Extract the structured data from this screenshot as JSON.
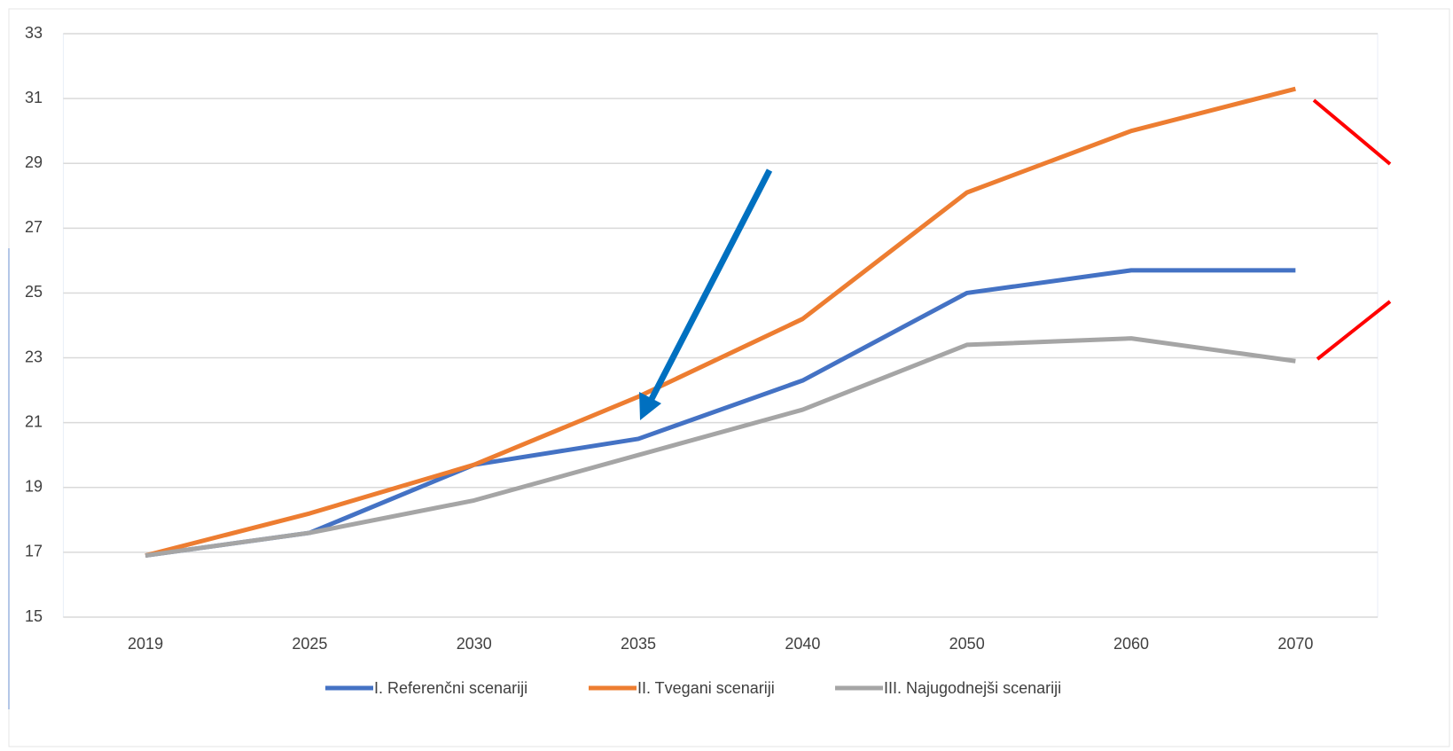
{
  "chart_data": {
    "type": "line",
    "categories": [
      "2019",
      "2025",
      "2030",
      "2035",
      "2040",
      "2050",
      "2060",
      "2070"
    ],
    "series": [
      {
        "name": "I. Referenčni scenariji",
        "color": "#4472c4",
        "values": [
          16.9,
          17.6,
          19.7,
          20.5,
          22.3,
          25.0,
          25.7,
          25.7
        ]
      },
      {
        "name": "II. Tvegani scenariji",
        "color": "#ed7d31",
        "values": [
          16.9,
          18.2,
          19.7,
          21.8,
          24.2,
          28.1,
          30.0,
          31.3
        ]
      },
      {
        "name": "III. Najugodnejši scenariji",
        "color": "#a5a5a5",
        "values": [
          16.9,
          17.6,
          18.6,
          20.0,
          21.4,
          23.4,
          23.6,
          22.9
        ]
      }
    ],
    "ylim": [
      15,
      33
    ],
    "yticks": [
      15,
      17,
      19,
      21,
      23,
      25,
      27,
      29,
      31,
      33
    ],
    "grid": true,
    "legend": "bottom"
  }
}
